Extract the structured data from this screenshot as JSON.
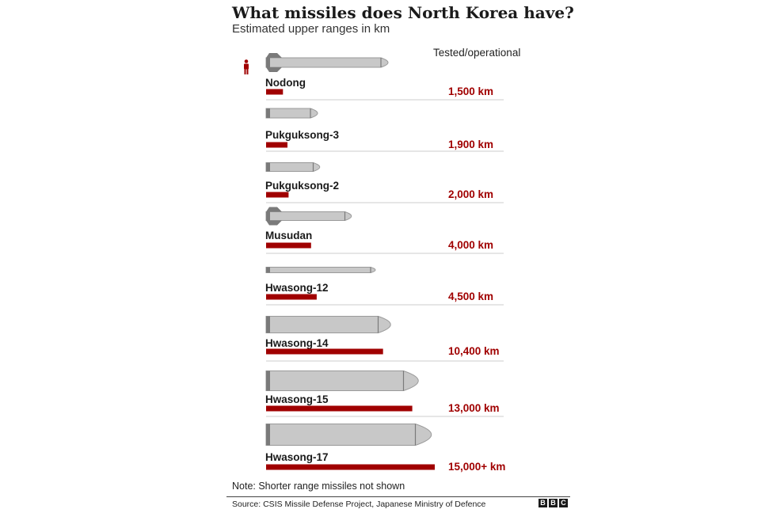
{
  "title": "What missiles does North Korea have?",
  "subtitle": "Estimated upper ranges in km",
  "column_header": "Tested/operational",
  "note": "Note: Shorter range missiles not shown",
  "source": "Source: CSIS Missile Defense Project, Japanese Ministry of Defence",
  "logo_letters": [
    "B",
    "B",
    "C"
  ],
  "icons": {
    "scale_figure": "person-icon"
  },
  "colors": {
    "bar": "#a00000",
    "label_value": "#a00000",
    "missile_body": "#c8c8c8",
    "missile_dark": "#7a7a7a",
    "separator": "#cccccc"
  },
  "chart_data": {
    "type": "bar",
    "orientation": "horizontal",
    "categories": [
      "Nodong",
      "Pukguksong-3",
      "Pukguksong-2",
      "Musudan",
      "Hwasong-12",
      "Hwasong-14",
      "Hwasong-15",
      "Hwasong-17"
    ],
    "values": [
      1500,
      1900,
      2000,
      4000,
      4500,
      10400,
      13000,
      15000
    ],
    "value_labels": [
      "1,500 km",
      "1,900 km",
      "2,000 km",
      "4,000 km",
      "4,500 km",
      "10,400 km",
      "13,000 km",
      "15,000+ km"
    ],
    "unit": "km",
    "title": "What missiles does North Korea have?",
    "subtitle": "Estimated upper ranges in km",
    "grid": false,
    "legend": "none"
  }
}
